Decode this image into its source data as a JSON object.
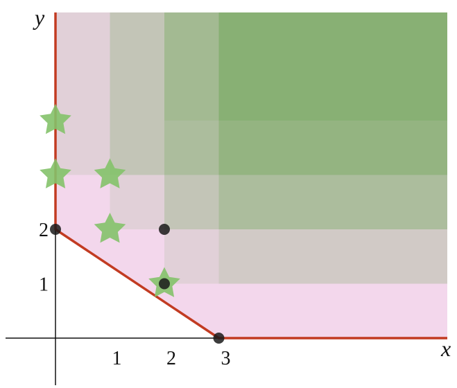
{
  "axes": {
    "x_label": "x",
    "y_label": "y",
    "x_ticks": [
      {
        "value": 1,
        "label": "1"
      },
      {
        "value": 2,
        "label": "2"
      },
      {
        "value": 3,
        "label": "3"
      }
    ],
    "y_ticks": [
      {
        "value": 1,
        "label": "1"
      },
      {
        "value": 2,
        "label": "2"
      }
    ]
  },
  "colors": {
    "boundary": "#c23b22",
    "region": "#f3d7ec",
    "green": "#5fa84a",
    "star": "#84c26a",
    "point": "#1a1a1a"
  },
  "boundary_points": [
    [
      0,
      6
    ],
    [
      0,
      2
    ],
    [
      3,
      0
    ],
    [
      7.4,
      0
    ]
  ],
  "region_points": [
    [
      0,
      6
    ],
    [
      0,
      2
    ],
    [
      3,
      0
    ],
    [
      7.4,
      0
    ],
    [
      7.4,
      6
    ]
  ],
  "dots": [
    [
      0,
      2
    ],
    [
      3,
      0
    ],
    [
      2,
      2
    ],
    [
      2,
      1
    ]
  ],
  "stars": [
    [
      0,
      4
    ],
    [
      0,
      3
    ],
    [
      1,
      3
    ],
    [
      1,
      2
    ],
    [
      2,
      1
    ]
  ],
  "green_overlays": [
    {
      "x0": 0,
      "y0": 3,
      "opacity": 0.12
    },
    {
      "x0": 1,
      "y0": 2,
      "opacity": 0.12
    },
    {
      "x0": 2,
      "y0": 1,
      "opacity": 0.12
    },
    {
      "x0": 1,
      "y0": 3,
      "opacity": 0.12
    },
    {
      "x0": 2,
      "y0": 2,
      "opacity": 0.12
    },
    {
      "x0": 3,
      "y0": 1,
      "opacity": 0.12
    },
    {
      "x0": 3,
      "y0": 2,
      "opacity": 0.12
    },
    {
      "x0": 2,
      "y0": 4,
      "opacity": 0.12
    },
    {
      "x0": 3,
      "y0": 3,
      "opacity": 0.12
    },
    {
      "x0": 3,
      "y0": 4,
      "opacity": 0.12
    }
  ]
}
